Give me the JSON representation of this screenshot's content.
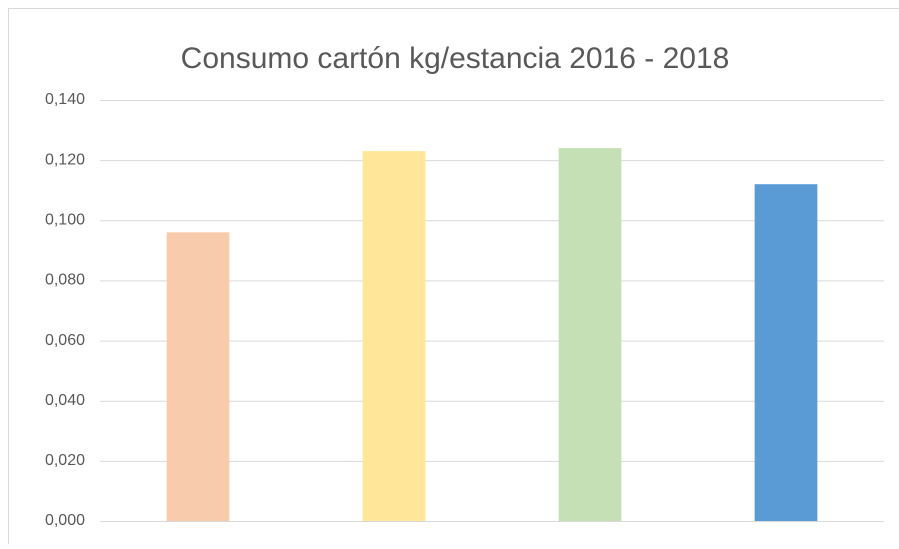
{
  "chart_data": {
    "type": "bar",
    "title": "Consumo cartón kg/estancia 2016 - 2018",
    "categories": [
      null,
      null,
      null,
      null
    ],
    "values": [
      0.096,
      0.123,
      0.124,
      0.112
    ],
    "colors": [
      "#f8cbad",
      "#ffe699",
      "#c5e0b4",
      "#5b9bd5"
    ],
    "ylim": [
      0,
      0.14
    ],
    "yticks": [
      {
        "value": 0,
        "label": "0,000"
      },
      {
        "value": 0.02,
        "label": "0,020"
      },
      {
        "value": 0.04,
        "label": "0,040"
      },
      {
        "value": 0.06,
        "label": "0,060"
      },
      {
        "value": 0.08,
        "label": "0,080"
      },
      {
        "value": 0.1,
        "label": "0,100"
      },
      {
        "value": 0.12,
        "label": "0,120"
      },
      {
        "value": 0.14,
        "label": "0,140"
      }
    ],
    "grid": true
  }
}
